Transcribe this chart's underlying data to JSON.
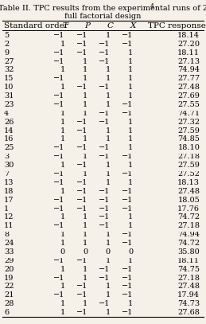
{
  "title_line1": "Table II. TPC results from the experimental runs of 2",
  "title_superscript": "4",
  "title_line2": "full factorial design",
  "headers": [
    "Standard order",
    "T",
    "P",
    "C",
    "X",
    "TPC response"
  ],
  "rows": [
    [
      5,
      -1,
      -1,
      1,
      -1,
      "18.14"
    ],
    [
      2,
      1,
      -1,
      -1,
      -1,
      "27.20"
    ],
    [
      9,
      -1,
      -1,
      -1,
      1,
      "18.11"
    ],
    [
      27,
      -1,
      1,
      -1,
      1,
      "27.13"
    ],
    [
      32,
      1,
      1,
      1,
      1,
      "74.94"
    ],
    [
      15,
      -1,
      1,
      1,
      1,
      "27.77"
    ],
    [
      10,
      1,
      -1,
      -1,
      1,
      "27.48"
    ],
    [
      31,
      -1,
      1,
      1,
      1,
      "27.69"
    ],
    [
      23,
      -1,
      1,
      1,
      -1,
      "27.55"
    ],
    [
      4,
      1,
      1,
      -1,
      -1,
      "74.71"
    ],
    [
      26,
      1,
      -1,
      -1,
      1,
      "27.32"
    ],
    [
      14,
      1,
      -1,
      1,
      1,
      "27.59"
    ],
    [
      16,
      1,
      1,
      1,
      1,
      "74.85"
    ],
    [
      25,
      -1,
      -1,
      -1,
      1,
      "18.10"
    ],
    [
      3,
      -1,
      1,
      -1,
      -1,
      "27.18"
    ],
    [
      30,
      1,
      -1,
      1,
      1,
      "27.59"
    ],
    [
      7,
      -1,
      1,
      1,
      -1,
      "27.52"
    ],
    [
      13,
      -1,
      -1,
      1,
      1,
      "18.13"
    ],
    [
      18,
      1,
      -1,
      -1,
      -1,
      "27.48"
    ],
    [
      17,
      -1,
      -1,
      -1,
      -1,
      "18.05"
    ],
    [
      1,
      -1,
      -1,
      -1,
      -1,
      "17.76"
    ],
    [
      12,
      1,
      1,
      -1,
      1,
      "74.72"
    ],
    [
      11,
      -1,
      1,
      -1,
      1,
      "27.18"
    ],
    [
      8,
      1,
      1,
      1,
      -1,
      "74.94"
    ],
    [
      24,
      1,
      1,
      1,
      -1,
      "74.72"
    ],
    [
      33,
      0,
      0,
      0,
      0,
      "35.80"
    ],
    [
      29,
      -1,
      -1,
      1,
      1,
      "18.11"
    ],
    [
      20,
      1,
      1,
      -1,
      -1,
      "74.75"
    ],
    [
      19,
      -1,
      1,
      -1,
      -1,
      "27.18"
    ],
    [
      22,
      1,
      -1,
      1,
      -1,
      "27.48"
    ],
    [
      21,
      -1,
      -1,
      1,
      -1,
      "17.94"
    ],
    [
      28,
      1,
      1,
      -1,
      1,
      "74.73"
    ],
    [
      6,
      1,
      -1,
      1,
      -1,
      "27.68"
    ]
  ],
  "background_color": "#f5f0e8",
  "header_fontsize": 7.5,
  "row_fontsize": 7.0,
  "title_fontsize": 7.0,
  "separator_after_rows": [
    8,
    13,
    15,
    19,
    22,
    25
  ]
}
